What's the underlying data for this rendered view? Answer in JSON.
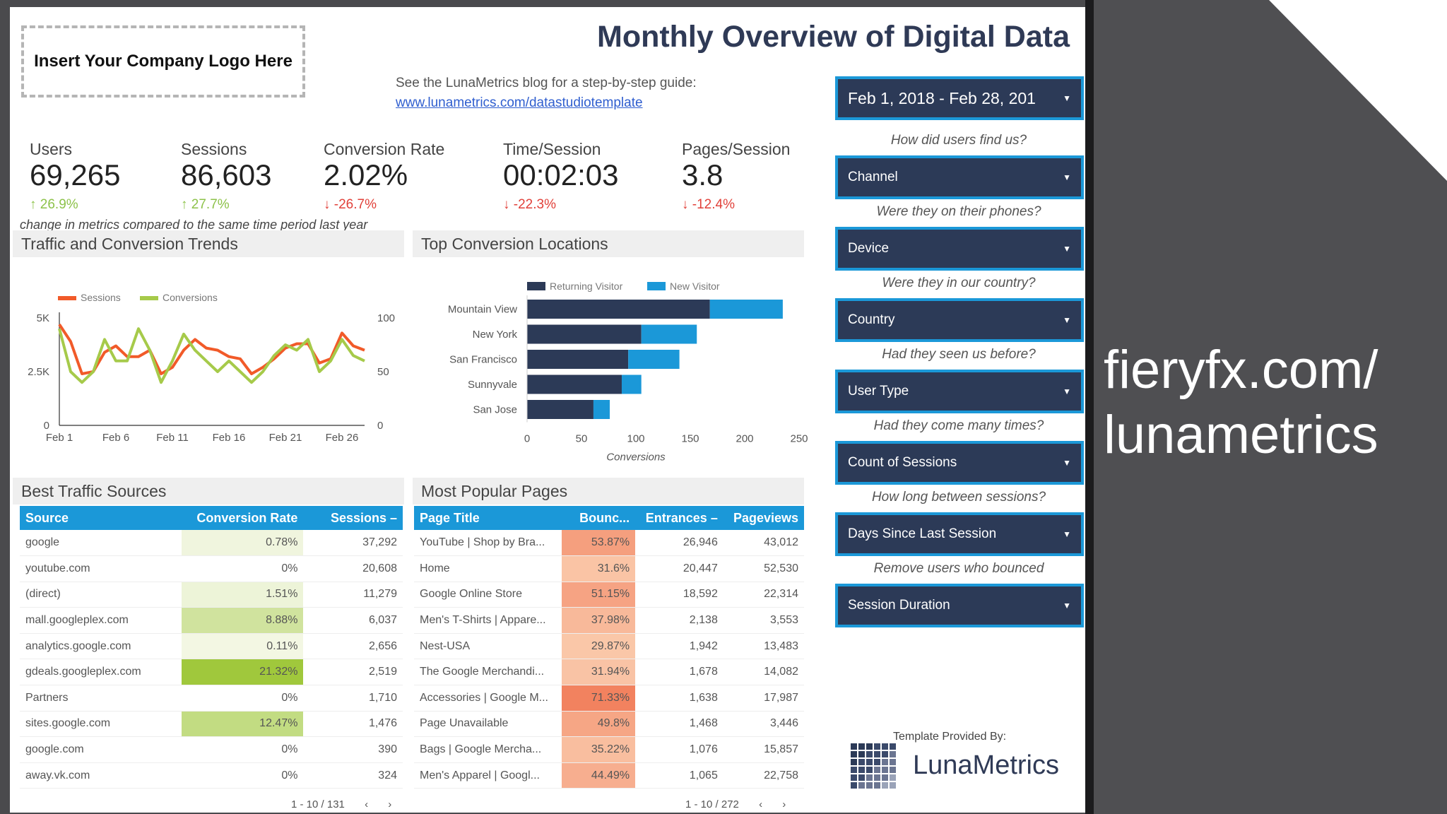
{
  "logo_placeholder": "Insert Your Company Logo Here",
  "title": "Monthly Overview of Digital Data",
  "guide": {
    "line1": "See the LunaMetrics blog for a step-by-step guide:",
    "link": "www.lunametrics.com/datastudiotemplate"
  },
  "metrics": [
    {
      "label": "Users",
      "value": "69,265",
      "change": "26.9%",
      "direction": "up"
    },
    {
      "label": "Sessions",
      "value": "86,603",
      "change": "27.7%",
      "direction": "up"
    },
    {
      "label": "Conversion Rate",
      "value": "2.02%",
      "change": "-26.7%",
      "direction": "down"
    },
    {
      "label": "Time/Session",
      "value": "00:02:03",
      "change": "-22.3%",
      "direction": "down"
    },
    {
      "label": "Pages/Session",
      "value": "3.8",
      "change": "-12.4%",
      "direction": "down"
    }
  ],
  "metrics_note": "change in metrics compared to the same time period last year",
  "panels": {
    "trends": "Traffic and Conversion Trends",
    "locations": "Top Conversion Locations",
    "sources": "Best Traffic Sources",
    "pages": "Most Popular Pages"
  },
  "colors": {
    "sessions": "#f15a29",
    "conversions": "#a6ca4a",
    "returning": "#2c3a57",
    "new": "#1b98d8",
    "header": "#1b98d8"
  },
  "chart_data": [
    {
      "type": "line",
      "legend": [
        "Sessions",
        "Conversions"
      ],
      "x_ticks": [
        "Feb 1",
        "Feb 6",
        "Feb 11",
        "Feb 16",
        "Feb 21",
        "Feb 26"
      ],
      "y_left_ticks": [
        "0",
        "2.5K",
        "5K"
      ],
      "y_right_ticks": [
        "0",
        "50",
        "100"
      ],
      "ylim_left": [
        0,
        5000
      ],
      "ylim_right": [
        0,
        100
      ],
      "series": [
        {
          "name": "Sessions",
          "axis": "left",
          "values": [
            4700,
            3900,
            2400,
            2500,
            3400,
            3700,
            3200,
            3200,
            3500,
            2400,
            2700,
            3500,
            4000,
            3600,
            3500,
            3200,
            3100,
            2400,
            2700,
            3100,
            3600,
            3800,
            3800,
            2900,
            3100,
            4300,
            3700,
            3500
          ]
        },
        {
          "name": "Conversions",
          "axis": "right",
          "values": [
            90,
            50,
            40,
            50,
            80,
            60,
            60,
            90,
            70,
            40,
            60,
            85,
            70,
            60,
            50,
            60,
            50,
            40,
            50,
            65,
            75,
            70,
            80,
            50,
            60,
            80,
            65,
            60
          ]
        }
      ]
    },
    {
      "type": "bar",
      "orientation": "horizontal",
      "stacked": true,
      "categories": [
        "Mountain View",
        "New York",
        "San Francisco",
        "Sunnyvale",
        "San Jose"
      ],
      "series": [
        {
          "name": "Returning Visitor",
          "values": [
            168,
            105,
            93,
            87,
            61
          ]
        },
        {
          "name": "New Visitor",
          "values": [
            67,
            51,
            47,
            18,
            15
          ]
        }
      ],
      "xlim": [
        0,
        250
      ],
      "x_ticks": [
        "0",
        "50",
        "100",
        "150",
        "200",
        "250"
      ],
      "xlabel": "Conversions"
    }
  ],
  "sources_table": {
    "headers": [
      "Source",
      "Conversion Rate",
      "Sessions –"
    ],
    "rows": [
      [
        "google",
        "0.78%",
        "37,292",
        0.78
      ],
      [
        "youtube.com",
        "0%",
        "20,608",
        0
      ],
      [
        "(direct)",
        "1.51%",
        "11,279",
        1.51
      ],
      [
        "mall.googleplex.com",
        "8.88%",
        "6,037",
        8.88
      ],
      [
        "analytics.google.com",
        "0.11%",
        "2,656",
        0.11
      ],
      [
        "gdeals.googleplex.com",
        "21.32%",
        "2,519",
        21.32
      ],
      [
        "Partners",
        "0%",
        "1,710",
        0
      ],
      [
        "sites.google.com",
        "12.47%",
        "1,476",
        12.47
      ],
      [
        "google.com",
        "0%",
        "390",
        0
      ],
      [
        "away.vk.com",
        "0%",
        "324",
        0
      ]
    ],
    "pager": "1 - 10 / 131"
  },
  "pages_table": {
    "headers": [
      "Page Title",
      "Bounc...",
      "Entrances –",
      "Pageviews"
    ],
    "rows": [
      [
        "YouTube | Shop by Bra...",
        "53.87%",
        "26,946",
        "43,012",
        53.87
      ],
      [
        "Home",
        "31.6%",
        "20,447",
        "52,530",
        31.6
      ],
      [
        "Google Online Store",
        "51.15%",
        "18,592",
        "22,314",
        51.15
      ],
      [
        "Men's T-Shirts | Appare...",
        "37.98%",
        "2,138",
        "3,553",
        37.98
      ],
      [
        "Nest-USA",
        "29.87%",
        "1,942",
        "13,483",
        29.87
      ],
      [
        "The Google Merchandi...",
        "31.94%",
        "1,678",
        "14,082",
        31.94
      ],
      [
        "Accessories | Google M...",
        "71.33%",
        "1,638",
        "17,987",
        71.33
      ],
      [
        "Page Unavailable",
        "49.8%",
        "1,468",
        "3,446",
        49.8
      ],
      [
        "Bags | Google Mercha...",
        "35.22%",
        "1,076",
        "15,857",
        35.22
      ],
      [
        "Men's Apparel | Googl...",
        "44.49%",
        "1,065",
        "22,758",
        44.49
      ]
    ],
    "pager": "1 - 10 / 272"
  },
  "controls": {
    "date": "Feb 1, 2018 - Feb 28, 201",
    "items": [
      {
        "question": "How did users find us?",
        "label": "Channel"
      },
      {
        "question": "Were they on their phones?",
        "label": "Device"
      },
      {
        "question": "Were they in our country?",
        "label": "Country"
      },
      {
        "question": "Had they seen us before?",
        "label": "User Type"
      },
      {
        "question": "Had they come many times?",
        "label": "Count of Sessions"
      },
      {
        "question": "How long between sessions?",
        "label": "Days Since Last Session"
      },
      {
        "question": "Remove users who bounced",
        "label": "Session Duration"
      }
    ]
  },
  "provided_by": "Template Provided By:",
  "brand": "LunaMetrics",
  "watermark": {
    "line1": "fieryfx.com/",
    "line2": "lunametrics"
  }
}
